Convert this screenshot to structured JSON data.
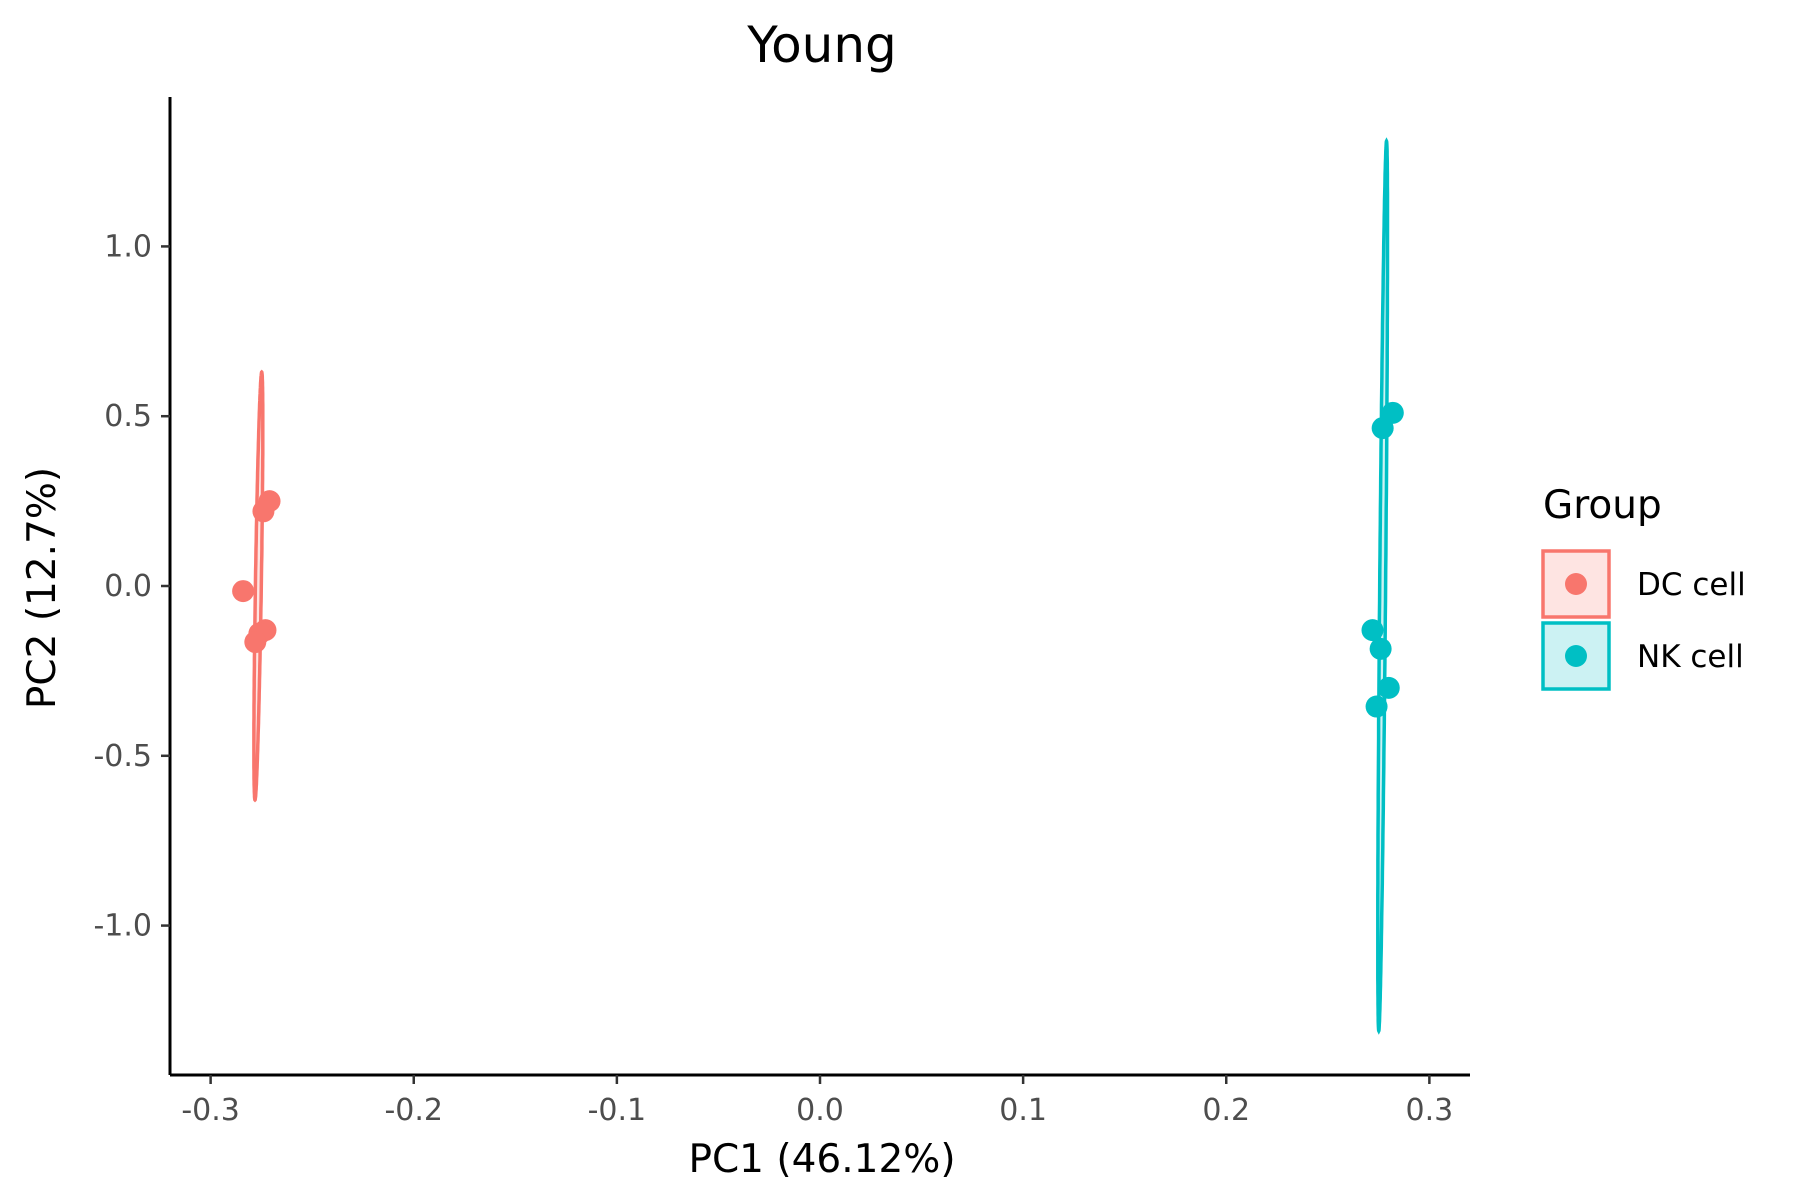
{
  "chart_data": {
    "type": "scatter",
    "title": "Young",
    "xlabel": "PC1 (46.12%)",
    "ylabel": "PC2 (12.7%)",
    "xlim": [
      -0.32,
      0.32
    ],
    "ylim": [
      -1.44,
      1.44
    ],
    "xticks": [
      -0.3,
      -0.2,
      -0.1,
      0.0,
      0.1,
      0.2,
      0.3
    ],
    "xtick_labels": [
      "-0.3",
      "-0.2",
      "-0.1",
      "0.0",
      "0.1",
      "0.2",
      "0.3"
    ],
    "yticks": [
      -1.0,
      -0.5,
      0.0,
      0.5,
      1.0
    ],
    "ytick_labels": [
      "-1.0",
      "-0.5",
      "0.0",
      "0.5",
      "1.0"
    ],
    "grid": false,
    "legend_title": "Group",
    "legend_position": "right",
    "series": [
      {
        "name": "DC cell",
        "color": "#F8766D",
        "points": [
          {
            "x": -0.271,
            "y": 0.25
          },
          {
            "x": -0.274,
            "y": 0.22
          },
          {
            "x": -0.284,
            "y": -0.015
          },
          {
            "x": -0.273,
            "y": -0.13
          },
          {
            "x": -0.276,
            "y": -0.14
          },
          {
            "x": -0.278,
            "y": -0.165
          }
        ],
        "ellipse": {
          "cx": -0.2765,
          "cy": 0.0,
          "semi_major": 0.63,
          "semi_minor": 0.0087,
          "angle_deg": 89.1
        }
      },
      {
        "name": "NK cell",
        "color": "#00BFC4",
        "points": [
          {
            "x": 0.282,
            "y": 0.51
          },
          {
            "x": 0.277,
            "y": 0.465
          },
          {
            "x": 0.272,
            "y": -0.13
          },
          {
            "x": 0.276,
            "y": -0.185
          },
          {
            "x": 0.28,
            "y": -0.3
          },
          {
            "x": 0.274,
            "y": -0.355
          }
        ],
        "ellipse": {
          "cx": 0.277,
          "cy": 0.0,
          "semi_major": 1.31,
          "semi_minor": 0.0087,
          "angle_deg": 89.5
        }
      }
    ]
  }
}
